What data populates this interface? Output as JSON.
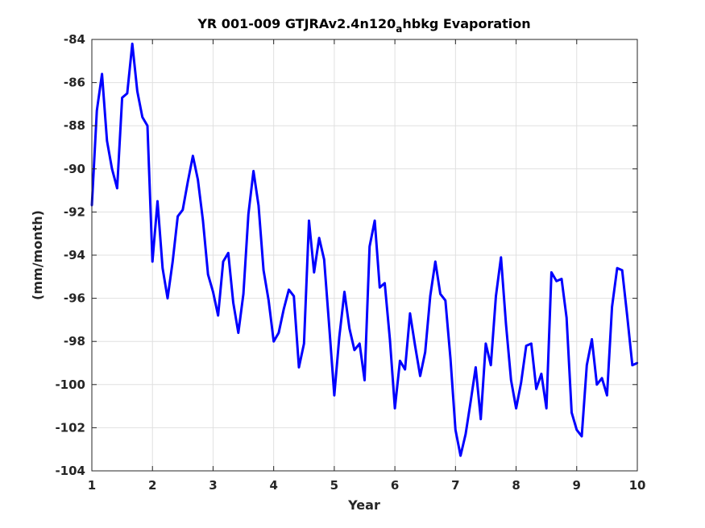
{
  "chart_data": {
    "type": "line",
    "title": {
      "before": "YR 001-009 GTJRAv2.4n120",
      "subscript": "a",
      "after": "hbkg Evaporation"
    },
    "xlabel": "Year",
    "ylabel": "(mm/month)",
    "xlim": [
      1,
      10
    ],
    "ylim": [
      -104,
      -84
    ],
    "xticks": [
      "1",
      "2",
      "3",
      "4",
      "5",
      "6",
      "7",
      "8",
      "9",
      "10"
    ],
    "yticks": [
      "-84",
      "-86",
      "-88",
      "-90",
      "-92",
      "-94",
      "-96",
      "-98",
      "-100",
      "-102",
      "-104"
    ],
    "grid": true,
    "line_color": "#0000ff",
    "series": [
      {
        "x": [
          1.0,
          1.083,
          1.167,
          1.25,
          1.333,
          1.417,
          1.5,
          1.583,
          1.667,
          1.75,
          1.833,
          1.917,
          2.0,
          2.083,
          2.167,
          2.25,
          2.333,
          2.417,
          2.5,
          2.583,
          2.667,
          2.75,
          2.833,
          2.917,
          3.0,
          3.083,
          3.167,
          3.25,
          3.333,
          3.417,
          3.5,
          3.583,
          3.667,
          3.75,
          3.833,
          3.917,
          4.0,
          4.083,
          4.167,
          4.25,
          4.333,
          4.417,
          4.5,
          4.583,
          4.667,
          4.75,
          4.833,
          4.917,
          5.0,
          5.083,
          5.167,
          5.25,
          5.333,
          5.417,
          5.5,
          5.583,
          5.667,
          5.75,
          5.833,
          5.917,
          6.0,
          6.083,
          6.167,
          6.25,
          6.333,
          6.417,
          6.5,
          6.583,
          6.667,
          6.75,
          6.833,
          6.917,
          7.0,
          7.083,
          7.167,
          7.25,
          7.333,
          7.417,
          7.5,
          7.583,
          7.667,
          7.75,
          7.833,
          7.917,
          8.0,
          8.083,
          8.167,
          8.25,
          8.333,
          8.417,
          8.5,
          8.583,
          8.667,
          8.75,
          8.833,
          8.917,
          9.0,
          9.083,
          9.167,
          9.25,
          9.333,
          9.417,
          9.5,
          9.583,
          9.667,
          9.75,
          9.833,
          9.917,
          10.0
        ],
        "y": [
          -91.7,
          -87.3,
          -85.6,
          -88.7,
          -90.0,
          -90.9,
          -86.7,
          -86.5,
          -84.2,
          -86.4,
          -87.6,
          -88.0,
          -94.3,
          -91.5,
          -94.6,
          -96.0,
          -94.3,
          -92.2,
          -91.9,
          -90.6,
          -89.4,
          -90.5,
          -92.4,
          -94.9,
          -95.7,
          -96.8,
          -94.3,
          -93.9,
          -96.2,
          -97.6,
          -95.8,
          -92.1,
          -90.1,
          -91.7,
          -94.7,
          -96.1,
          -98.0,
          -97.6,
          -96.5,
          -95.6,
          -95.9,
          -99.2,
          -98.1,
          -92.4,
          -94.8,
          -93.2,
          -94.2,
          -97.3,
          -100.5,
          -97.8,
          -95.7,
          -97.4,
          -98.4,
          -98.1,
          -99.8,
          -93.6,
          -92.4,
          -95.5,
          -95.3,
          -97.9,
          -101.1,
          -98.9,
          -99.3,
          -96.7,
          -98.2,
          -99.6,
          -98.5,
          -95.9,
          -94.3,
          -95.8,
          -96.1,
          -98.8,
          -102.1,
          -103.3,
          -102.3,
          -100.8,
          -99.2,
          -101.6,
          -98.1,
          -99.1,
          -95.9,
          -94.1,
          -97.2,
          -99.8,
          -101.1,
          -99.9,
          -98.2,
          -98.1,
          -100.2,
          -99.5,
          -101.1,
          -94.8,
          -95.2,
          -95.1,
          -96.9,
          -101.3,
          -102.1,
          -102.4,
          -99.1,
          -97.9,
          -100.0,
          -99.7,
          -100.5,
          -96.4,
          -94.6,
          -94.7,
          -96.8,
          -99.1,
          -99.0
        ]
      }
    ]
  }
}
